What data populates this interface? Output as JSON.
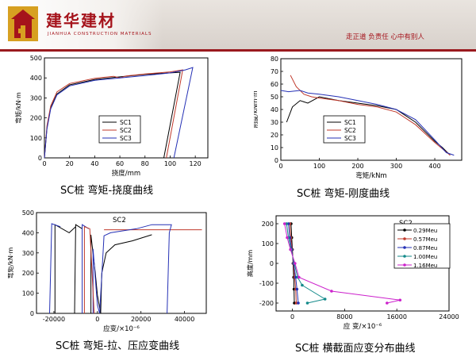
{
  "header": {
    "brand_cn": "建华建材",
    "brand_en": "JIANHUA CONSTRUCTION MATERIALS",
    "slogan": "走正道 负责任 心中有别人"
  },
  "captions": {
    "tl": "SC桩 弯矩-挠度曲线",
    "tr": "SC桩 弯矩-刚度曲线",
    "bl": "SC桩 弯矩-拉、压应变曲线",
    "br": "SC桩 横截面应变分布曲线"
  },
  "colors": {
    "SC1": "#000000",
    "SC2": "#c0392b",
    "SC3": "#2430b5"
  },
  "chart_data": [
    {
      "id": "tl",
      "type": "line",
      "xlabel": "挠度/mm",
      "ylabel": "弯矩/kN·m",
      "xlim": [
        0,
        130
      ],
      "ylim": [
        0,
        500
      ],
      "xticks": [
        0,
        20,
        40,
        60,
        80,
        100,
        120
      ],
      "yticks": [
        0,
        100,
        200,
        300,
        400,
        500
      ],
      "legend": "center",
      "series": [
        {
          "name": "SC1",
          "color": "#000000",
          "points": [
            [
              0,
              0
            ],
            [
              2,
              150
            ],
            [
              5,
              250
            ],
            [
              10,
              320
            ],
            [
              20,
              365
            ],
            [
              40,
              392
            ],
            [
              60,
              405
            ],
            [
              80,
              418
            ],
            [
              100,
              425
            ],
            [
              108,
              428
            ],
            [
              95,
              0
            ]
          ]
        },
        {
          "name": "SC2",
          "color": "#c0392b",
          "points": [
            [
              0,
              0
            ],
            [
              2,
              160
            ],
            [
              5,
              260
            ],
            [
              10,
              330
            ],
            [
              20,
              372
            ],
            [
              40,
              398
            ],
            [
              55,
              408
            ],
            [
              60,
              400
            ],
            [
              65,
              410
            ],
            [
              80,
              420
            ],
            [
              100,
              430
            ],
            [
              110,
              440
            ],
            [
              97,
              0
            ]
          ]
        },
        {
          "name": "SC3",
          "color": "#2430b5",
          "points": [
            [
              0,
              0
            ],
            [
              2,
              145
            ],
            [
              5,
              245
            ],
            [
              10,
              315
            ],
            [
              20,
              360
            ],
            [
              40,
              388
            ],
            [
              60,
              400
            ],
            [
              80,
              412
            ],
            [
              100,
              425
            ],
            [
              112,
              440
            ],
            [
              118,
              452
            ],
            [
              103,
              0
            ]
          ]
        }
      ]
    },
    {
      "id": "tr",
      "type": "line",
      "xlabel": "弯矩/kNm",
      "ylabel": "刚度/kNm·m",
      "xlim": [
        0,
        470
      ],
      "ylim": [
        0,
        80
      ],
      "xticks": [
        0,
        100,
        200,
        300,
        400
      ],
      "yticks": [
        0,
        10,
        20,
        30,
        40,
        50,
        60,
        70,
        80
      ],
      "legend": "center",
      "series": [
        {
          "name": "SC1",
          "color": "#000000",
          "points": [
            [
              15,
              30
            ],
            [
              30,
              42
            ],
            [
              50,
              47
            ],
            [
              70,
              45
            ],
            [
              100,
              50
            ],
            [
              150,
              47
            ],
            [
              200,
              45
            ],
            [
              250,
              43
            ],
            [
              300,
              40
            ],
            [
              350,
              30
            ],
            [
              400,
              15
            ],
            [
              420,
              10
            ],
            [
              440,
              4
            ]
          ]
        },
        {
          "name": "SC2",
          "color": "#c0392b",
          "points": [
            [
              25,
              67
            ],
            [
              40,
              58
            ],
            [
              60,
              52
            ],
            [
              80,
              50
            ],
            [
              100,
              49
            ],
            [
              150,
              47
            ],
            [
              200,
              44
            ],
            [
              250,
              42
            ],
            [
              300,
              38
            ],
            [
              350,
              28
            ],
            [
              400,
              14
            ],
            [
              440,
              4
            ]
          ]
        },
        {
          "name": "SC3",
          "color": "#2430b5",
          "points": [
            [
              0,
              55
            ],
            [
              20,
              54
            ],
            [
              50,
              55
            ],
            [
              70,
              53
            ],
            [
              100,
              52
            ],
            [
              150,
              50
            ],
            [
              200,
              47
            ],
            [
              250,
              44
            ],
            [
              300,
              40
            ],
            [
              350,
              32
            ],
            [
              400,
              16
            ],
            [
              430,
              6
            ],
            [
              450,
              4
            ]
          ]
        }
      ]
    },
    {
      "id": "bl",
      "type": "line",
      "title": "SC2",
      "xlabel": "应变/×10⁻⁶",
      "ylabel": "弯矩/kN·m",
      "xlim": [
        -28000,
        50000
      ],
      "ylim": [
        0,
        500
      ],
      "xticks": [
        -20000,
        0,
        20000,
        40000
      ],
      "yticks": [
        0,
        100,
        200,
        300,
        400,
        500
      ],
      "legend": "none",
      "series": [
        {
          "name": "",
          "color": "#c0392b",
          "points": [
            [
              3000,
              415
            ],
            [
              20000,
              415
            ],
            [
              35000,
              415
            ],
            [
              48000,
              415
            ]
          ]
        },
        {
          "name": "",
          "color": "#000000",
          "points": [
            [
              -19500,
              0
            ],
            [
              -19500,
              440
            ],
            [
              -13000,
              400
            ],
            [
              -10000,
              430
            ]
          ]
        },
        {
          "name": "",
          "color": "#000000",
          "points": [
            [
              -10500,
              0
            ],
            [
              -10000,
              440
            ],
            [
              -7000,
              420
            ]
          ]
        },
        {
          "name": "",
          "color": "#000000",
          "points": [
            [
              -3000,
              0
            ],
            [
              -3000,
              390
            ],
            [
              -1000,
              200
            ],
            [
              0,
              90
            ],
            [
              1500,
              0
            ]
          ]
        },
        {
          "name": "",
          "color": "#000000",
          "points": [
            [
              1500,
              0
            ],
            [
              2000,
              200
            ],
            [
              4000,
              300
            ],
            [
              8000,
              340
            ],
            [
              16000,
              360
            ],
            [
              25000,
              390
            ]
          ]
        },
        {
          "name": "",
          "color": "#2430b5",
          "points": [
            [
              -22000,
              0
            ],
            [
              -21000,
              445
            ],
            [
              -17000,
              430
            ]
          ]
        },
        {
          "name": "",
          "color": "#2430b5",
          "points": [
            [
              -7000,
              0
            ],
            [
              -7000,
              440
            ],
            [
              -4000,
              420
            ]
          ]
        },
        {
          "name": "",
          "color": "#2430b5",
          "points": [
            [
              -2000,
              0
            ],
            [
              -2000,
              320
            ],
            [
              0,
              40
            ],
            [
              1000,
              0
            ]
          ]
        },
        {
          "name": "",
          "color": "#2430b5",
          "points": [
            [
              32000,
              0
            ],
            [
              33000,
              400
            ],
            [
              34000,
              440
            ],
            [
              25000,
              440
            ],
            [
              18000,
              420
            ],
            [
              6000,
              400
            ],
            [
              3000,
              385
            ],
            [
              1000,
              0
            ]
          ]
        },
        {
          "name": "",
          "color": "#c0392b",
          "points": [
            [
              -6000,
              0
            ],
            [
              -6000,
              430
            ],
            [
              -3500,
              420
            ],
            [
              -1500,
              0
            ]
          ]
        }
      ]
    },
    {
      "id": "br",
      "type": "line",
      "title": "SC2",
      "xlabel": "应 变/×10⁻⁶",
      "ylabel": "高度/mm",
      "xlim": [
        -2500,
        24000
      ],
      "ylim": [
        -240,
        240
      ],
      "xticks": [
        0,
        8000,
        16000,
        24000
      ],
      "yticks": [
        -200,
        -100,
        0,
        100,
        200
      ],
      "legend": "right",
      "series": [
        {
          "name": "0.29Meu",
          "color": "#000000",
          "points": [
            [
              -200,
              200
            ],
            [
              -100,
              130
            ],
            [
              0,
              70
            ],
            [
              100,
              0
            ],
            [
              200,
              -70
            ],
            [
              250,
              -130
            ],
            [
              300,
              -200
            ]
          ]
        },
        {
          "name": "0.57Meu",
          "color": "#c0392b",
          "points": [
            [
              -400,
              200
            ],
            [
              -250,
              130
            ],
            [
              -50,
              70
            ],
            [
              150,
              0
            ],
            [
              350,
              -70
            ],
            [
              500,
              -130
            ],
            [
              600,
              -200
            ]
          ]
        },
        {
          "name": "0.87Meu",
          "color": "#2430b5",
          "points": [
            [
              -600,
              200
            ],
            [
              -400,
              130
            ],
            [
              -100,
              70
            ],
            [
              200,
              0
            ],
            [
              500,
              -70
            ],
            [
              700,
              -130
            ],
            [
              900,
              -200
            ]
          ]
        },
        {
          "name": "1.00Meu",
          "color": "#138a8a",
          "points": [
            [
              -900,
              200
            ],
            [
              -600,
              130
            ],
            [
              -200,
              70
            ],
            [
              300,
              0
            ],
            [
              800,
              -70
            ],
            [
              1500,
              -110
            ],
            [
              5000,
              -180
            ],
            [
              2300,
              -200
            ]
          ]
        },
        {
          "name": "1.16Meu",
          "color": "#cc22cc",
          "points": [
            [
              -1200,
              200
            ],
            [
              -800,
              130
            ],
            [
              -300,
              70
            ],
            [
              400,
              0
            ],
            [
              1000,
              -70
            ],
            [
              6000,
              -140
            ],
            [
              16500,
              -185
            ],
            [
              14500,
              -200
            ]
          ]
        }
      ]
    }
  ]
}
